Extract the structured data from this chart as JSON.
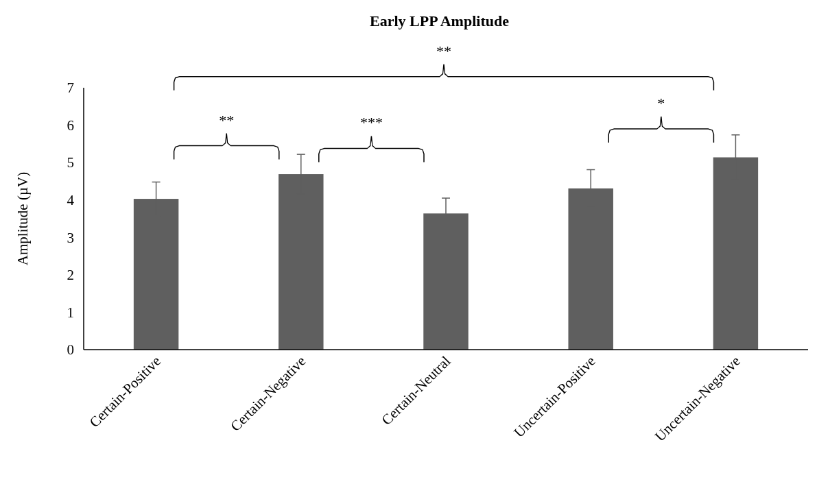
{
  "chart_data": {
    "type": "bar",
    "title": "Early LPP Amplitude",
    "ylabel": "Amplitude (µV)",
    "categories": [
      "Certain-Positive",
      "Certain-Negative",
      "Certain-Neutral",
      "Uncertain-Positive",
      "Uncertain-Negative"
    ],
    "values": [
      4.03,
      4.69,
      3.64,
      4.31,
      5.14
    ],
    "errors": [
      0.45,
      0.53,
      0.41,
      0.5,
      0.6
    ],
    "color": "#5f5f5f",
    "ylim": [
      0,
      7
    ],
    "yticks": [
      0,
      1,
      2,
      3,
      4,
      5,
      6,
      7
    ],
    "grid": false,
    "annotations": [
      "**",
      "***",
      "*",
      "**"
    ]
  }
}
